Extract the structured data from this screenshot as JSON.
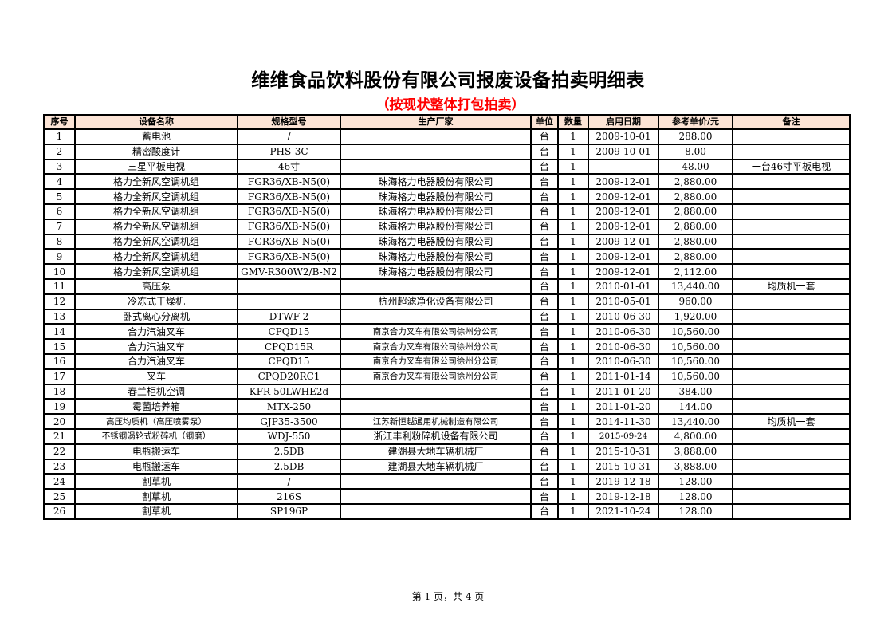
{
  "title": "维维食品饮料股份有限公司报废设备拍卖明细表",
  "subtitle": "（按现状整体打包拍卖）",
  "columns": [
    "序号",
    "设备名称",
    "规格型号",
    "生产厂家",
    "单位",
    "数量",
    "启用日期",
    "参考单价/元",
    "备注"
  ],
  "rows": [
    [
      "1",
      "蓄电池",
      "/",
      "",
      "台",
      "1",
      "2009-10-01",
      "288.00",
      ""
    ],
    [
      "2",
      "精密酸度计",
      "PHS-3C",
      "",
      "台",
      "1",
      "2009-10-01",
      "8.00",
      ""
    ],
    [
      "3",
      "三星平板电视",
      "46寸",
      "",
      "台",
      "1",
      "",
      "48.00",
      "一台46寸平板电视"
    ],
    [
      "4",
      "格力全新风空调机组",
      "FGR36/XB-N5(0)",
      "珠海格力电器股份有限公司",
      "台",
      "1",
      "2009-12-01",
      "2,880.00",
      ""
    ],
    [
      "5",
      "格力全新风空调机组",
      "FGR36/XB-N5(0)",
      "珠海格力电器股份有限公司",
      "台",
      "1",
      "2009-12-01",
      "2,880.00",
      ""
    ],
    [
      "6",
      "格力全新风空调机组",
      "FGR36/XB-N5(0)",
      "珠海格力电器股份有限公司",
      "台",
      "1",
      "2009-12-01",
      "2,880.00",
      ""
    ],
    [
      "7",
      "格力全新风空调机组",
      "FGR36/XB-N5(0)",
      "珠海格力电器股份有限公司",
      "台",
      "1",
      "2009-12-01",
      "2,880.00",
      ""
    ],
    [
      "8",
      "格力全新风空调机组",
      "FGR36/XB-N5(0)",
      "珠海格力电器股份有限公司",
      "台",
      "1",
      "2009-12-01",
      "2,880.00",
      ""
    ],
    [
      "9",
      "格力全新风空调机组",
      "FGR36/XB-N5(0)",
      "珠海格力电器股份有限公司",
      "台",
      "1",
      "2009-12-01",
      "2,880.00",
      ""
    ],
    [
      "10",
      "格力全新风空调机组",
      "GMV-R300W2/B-N2",
      "珠海格力电器股份有限公司",
      "台",
      "1",
      "2009-12-01",
      "2,112.00",
      ""
    ],
    [
      "11",
      "高压泵",
      "",
      "",
      "台",
      "1",
      "2010-01-01",
      "13,440.00",
      "均质机一套"
    ],
    [
      "12",
      "冷冻式干燥机",
      "",
      "杭州超滤净化设备有限公司",
      "台",
      "1",
      "2010-05-01",
      "960.00",
      ""
    ],
    [
      "13",
      "卧式离心分离机",
      "DTWF-2",
      "",
      "台",
      "1",
      "2010-06-30",
      "1,920.00",
      ""
    ],
    [
      "14",
      "合力汽油叉车",
      "CPQD15",
      "南京合力叉车有限公司徐州分公司",
      "台",
      "1",
      "2010-06-30",
      "10,560.00",
      ""
    ],
    [
      "15",
      "合力汽油叉车",
      "CPQD15R",
      "南京合力叉车有限公司徐州分公司",
      "台",
      "1",
      "2010-06-30",
      "10,560.00",
      ""
    ],
    [
      "16",
      "合力汽油叉车",
      "CPQD15",
      "南京合力叉车有限公司徐州分公司",
      "台",
      "1",
      "2010-06-30",
      "10,560.00",
      ""
    ],
    [
      "17",
      "叉车",
      "CPQD20RC1",
      "南京合力叉车有限公司徐州分公司",
      "台",
      "1",
      "2011-01-14",
      "10,560.00",
      ""
    ],
    [
      "18",
      "春兰柜机空调",
      "KFR-50LWHE2d",
      "",
      "台",
      "1",
      "2011-01-20",
      "384.00",
      ""
    ],
    [
      "19",
      "霉菌培养箱",
      "MTX-250",
      "",
      "台",
      "1",
      "2011-01-20",
      "144.00",
      ""
    ],
    [
      "20",
      "高压均质机（高压喷雾泵）",
      "GJP35-3500",
      "江苏新恒越通用机械制造有限公司",
      "台",
      "1",
      "2014-11-30",
      "13,440.00",
      "均质机一套"
    ],
    [
      "21",
      "不锈钢涡轮式粉碎机（钢磨）",
      "WDJ-550",
      "浙江丰利粉碎机设备有限公司",
      "台",
      "1",
      "2015-09-24",
      "4,800.00",
      ""
    ],
    [
      "22",
      "电瓶搬运车",
      "2.5DB",
      "建湖县大地车辆机械厂",
      "台",
      "1",
      "2015-10-31",
      "3,888.00",
      ""
    ],
    [
      "23",
      "电瓶搬运车",
      "2.5DB",
      "建湖县大地车辆机械厂",
      "台",
      "1",
      "2015-10-31",
      "3,888.00",
      ""
    ],
    [
      "24",
      "割草机",
      "/",
      "",
      "台",
      "1",
      "2019-12-18",
      "128.00",
      ""
    ],
    [
      "25",
      "割草机",
      "216S",
      "",
      "台",
      "1",
      "2019-12-18",
      "128.00",
      ""
    ],
    [
      "26",
      "割草机",
      "SP196P",
      "",
      "台",
      "1",
      "2021-10-24",
      "128.00",
      ""
    ]
  ],
  "footer": "第 1 页，共 4 页",
  "colors": {
    "header_bg": "#fce4d6",
    "subtitle": "#ff0000"
  }
}
